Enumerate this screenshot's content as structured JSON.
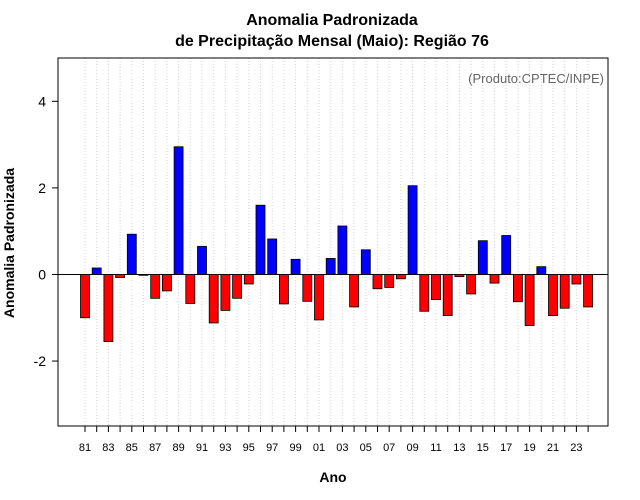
{
  "chart_data": {
    "type": "bar",
    "title_line1": "Anomalia Padronizada",
    "title_line2": "de Precipitação Mensal (Maio): Região 76",
    "xlabel": "Ano",
    "ylabel": "Anomalia Padronizada",
    "credit": "(Produto:CPTEC/INPE)",
    "ylim": [
      -3.5,
      5.0
    ],
    "yticks": [
      -2,
      0,
      2,
      4
    ],
    "ytick_labels": [
      "-2",
      "0",
      "2",
      "4"
    ],
    "grid": "vertical dotted",
    "positive_color": "#0000ff",
    "negative_color": "#ff0000",
    "categories": [
      "81",
      "82",
      "83",
      "84",
      "85",
      "86",
      "87",
      "88",
      "89",
      "90",
      "91",
      "92",
      "93",
      "94",
      "95",
      "96",
      "97",
      "98",
      "99",
      "00",
      "01",
      "02",
      "03",
      "04",
      "05",
      "06",
      "07",
      "08",
      "09",
      "10",
      "11",
      "12",
      "13",
      "14",
      "15",
      "16",
      "17",
      "18",
      "19",
      "20",
      "21",
      "22",
      "23",
      "24"
    ],
    "x_tick_labels": [
      "81",
      "83",
      "85",
      "87",
      "89",
      "91",
      "93",
      "95",
      "97",
      "99",
      "01",
      "03",
      "05",
      "07",
      "09",
      "11",
      "13",
      "15",
      "17",
      "19",
      "21",
      "23"
    ],
    "values": [
      -1.0,
      0.15,
      -1.55,
      -0.07,
      0.93,
      -0.02,
      -0.55,
      -0.38,
      2.95,
      -0.67,
      0.65,
      -1.12,
      -0.83,
      -0.55,
      -0.22,
      1.6,
      0.82,
      -0.68,
      0.35,
      -0.62,
      -1.05,
      0.37,
      1.12,
      -0.75,
      0.57,
      -0.33,
      -0.3,
      -0.1,
      2.05,
      -0.85,
      -0.58,
      -0.95,
      -0.05,
      -0.45,
      0.78,
      -0.2,
      0.9,
      -0.63,
      -1.18,
      0.18,
      -0.95,
      -0.78,
      -0.22,
      -0.75
    ]
  }
}
